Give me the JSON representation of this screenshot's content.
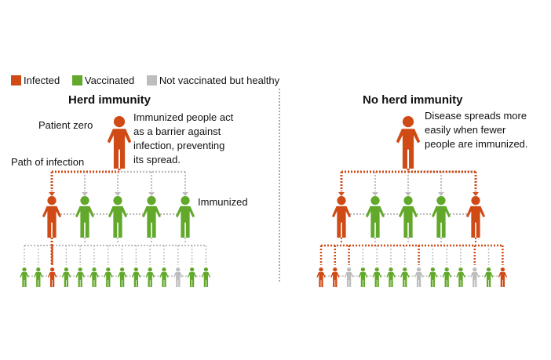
{
  "colors": {
    "infected": "#d04a15",
    "vaccinated": "#62a82a",
    "healthy": "#bdbdbd"
  },
  "legend": [
    {
      "label": "Infected",
      "status": "infected"
    },
    {
      "label": "Vaccinated",
      "status": "vaccinated"
    },
    {
      "label": "Not vaccinated but healthy",
      "status": "healthy"
    }
  ],
  "left": {
    "title": "Herd immunity",
    "patient_zero_label": "Patient zero",
    "path_label": "Path of infection",
    "immunized_label": "Immunized",
    "note_lines": [
      "Immunized people act",
      "as a barrier against",
      "infection, preventing",
      "its spread."
    ],
    "top": "infected",
    "middle": [
      "infected",
      "vaccinated",
      "vaccinated",
      "vaccinated",
      "vaccinated"
    ],
    "bottom": [
      "vaccinated",
      "vaccinated",
      "infected",
      "vaccinated",
      "vaccinated",
      "vaccinated",
      "vaccinated",
      "vaccinated",
      "vaccinated",
      "vaccinated",
      "vaccinated",
      "healthy",
      "vaccinated",
      "vaccinated"
    ]
  },
  "right": {
    "title": "No herd immunity",
    "note_lines": [
      "Disease spreads more",
      "easily when fewer",
      "people are immunized."
    ],
    "top": "infected",
    "middle": [
      "infected",
      "vaccinated",
      "vaccinated",
      "vaccinated",
      "infected"
    ],
    "bottom": [
      "infected",
      "infected",
      "healthy",
      "vaccinated",
      "vaccinated",
      "vaccinated",
      "vaccinated",
      "healthy",
      "vaccinated",
      "vaccinated",
      "vaccinated",
      "healthy",
      "vaccinated",
      "infected"
    ]
  }
}
